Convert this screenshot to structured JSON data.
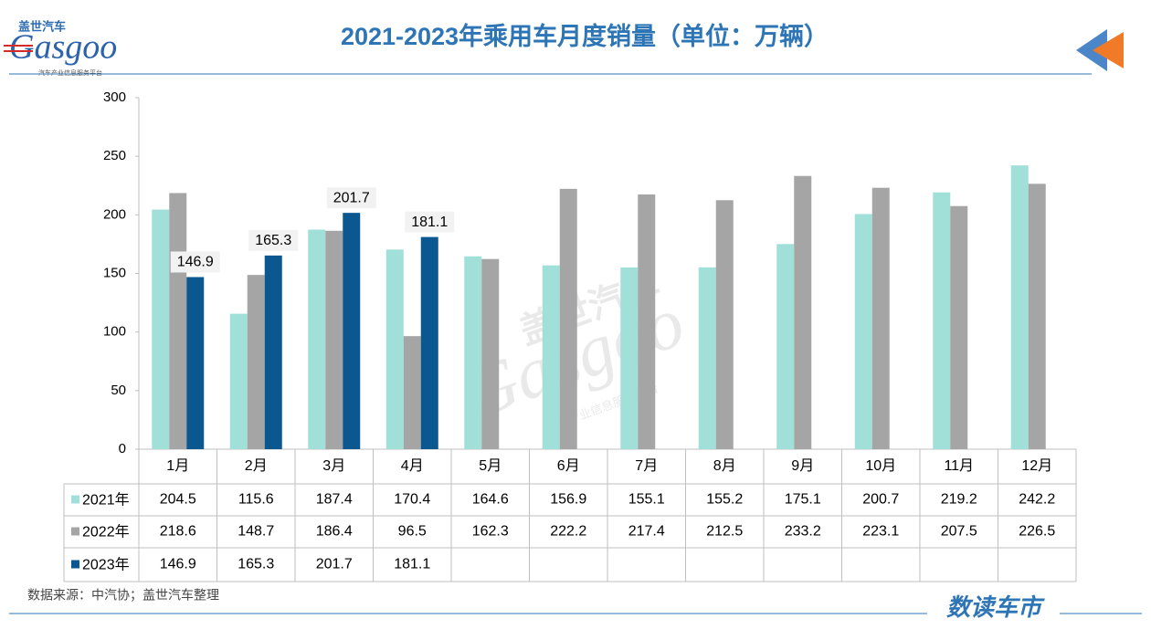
{
  "logo": {
    "brand_cn": "盖世汽车",
    "brand_en": "Gasgoo",
    "slogan": "汽车产业信息服务平台"
  },
  "chart_data": {
    "type": "bar",
    "title": "2021-2023年乘用车月度销量（单位：万辆）",
    "categories": [
      "1月",
      "2月",
      "3月",
      "4月",
      "5月",
      "6月",
      "7月",
      "8月",
      "9月",
      "10月",
      "11月",
      "12月"
    ],
    "series": [
      {
        "name": "2021年",
        "color": "#a0e0d8",
        "values": [
          204.5,
          115.6,
          187.4,
          170.4,
          164.6,
          156.9,
          155.1,
          155.2,
          175.1,
          200.7,
          219.2,
          242.2
        ]
      },
      {
        "name": "2022年",
        "color": "#a5a5a5",
        "values": [
          218.6,
          148.7,
          186.4,
          96.5,
          162.3,
          222.2,
          217.4,
          212.5,
          233.2,
          223.1,
          207.5,
          226.5
        ]
      },
      {
        "name": "2023年",
        "color": "#0b5891",
        "values": [
          146.9,
          165.3,
          201.7,
          181.1,
          null,
          null,
          null,
          null,
          null,
          null,
          null,
          null
        ],
        "data_labels": true
      }
    ],
    "ylim": [
      0,
      300
    ],
    "yticks": [
      0,
      50,
      100,
      150,
      200,
      250,
      300
    ],
    "grid": false
  },
  "footer": {
    "source": "数据来源：中汽协；盖世汽车整理",
    "brand": "数读车市"
  }
}
